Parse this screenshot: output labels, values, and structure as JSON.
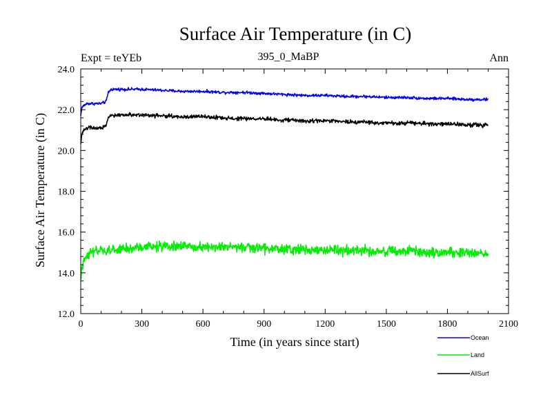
{
  "chart_data": {
    "type": "line",
    "title": "Surface Air Temperature (in C)",
    "subtitle": "395_0_MaBP",
    "left_label": "Expt = teYEb",
    "right_label": "Ann",
    "xlabel": "Time (in years since start)",
    "ylabel": "Surface Air Temperature (in C)",
    "xlim": [
      0,
      2100
    ],
    "ylim": [
      12.0,
      24.0
    ],
    "xticks": [
      0,
      300,
      600,
      900,
      1200,
      1500,
      1800,
      2100
    ],
    "xtick_labels": [
      "0",
      "300",
      "600",
      "900",
      "1200",
      "1500",
      "1800",
      "2100"
    ],
    "yticks": [
      12,
      14,
      16,
      18,
      20,
      22,
      24
    ],
    "ytick_labels": [
      "12.0",
      "14.0",
      "16.0",
      "18.0",
      "20.0",
      "22.0",
      "24.0"
    ],
    "series": [
      {
        "name": "Ocean",
        "color": "#0000ee",
        "x": [
          0,
          5,
          15,
          30,
          60,
          100,
          125,
          135,
          150,
          200,
          300,
          400,
          500,
          600,
          700,
          800,
          900,
          1000,
          1100,
          1200,
          1300,
          1400,
          1500,
          1600,
          1700,
          1800,
          1900,
          2000
        ],
        "values": [
          21.7,
          22.1,
          22.2,
          22.3,
          22.3,
          22.3,
          22.4,
          22.85,
          23.0,
          23.0,
          23.0,
          22.95,
          22.9,
          22.9,
          22.85,
          22.85,
          22.8,
          22.75,
          22.7,
          22.7,
          22.65,
          22.65,
          22.6,
          22.6,
          22.55,
          22.55,
          22.5,
          22.5
        ],
        "noise": 0.05
      },
      {
        "name": "Land",
        "color": "#00ee00",
        "x": [
          0,
          5,
          15,
          30,
          50,
          100,
          200,
          300,
          400,
          500,
          600,
          700,
          800,
          900,
          1000,
          1100,
          1200,
          1300,
          1400,
          1500,
          1600,
          1700,
          1800,
          1900,
          2000
        ],
        "values": [
          13.6,
          14.1,
          14.6,
          14.9,
          15.0,
          15.05,
          15.15,
          15.25,
          15.3,
          15.3,
          15.3,
          15.25,
          15.25,
          15.2,
          15.15,
          15.15,
          15.1,
          15.1,
          15.1,
          15.05,
          15.05,
          15.0,
          15.0,
          15.0,
          14.95
        ],
        "noise": 0.18
      },
      {
        "name": "AllSurf",
        "color": "#000000",
        "x": [
          0,
          5,
          15,
          30,
          60,
          100,
          125,
          135,
          150,
          200,
          300,
          400,
          500,
          600,
          700,
          800,
          900,
          1000,
          1100,
          1200,
          1300,
          1400,
          1500,
          1600,
          1700,
          1800,
          1900,
          2000
        ],
        "values": [
          20.3,
          20.8,
          21.0,
          21.1,
          21.1,
          21.1,
          21.2,
          21.6,
          21.7,
          21.75,
          21.75,
          21.7,
          21.65,
          21.65,
          21.6,
          21.55,
          21.55,
          21.5,
          21.45,
          21.45,
          21.4,
          21.4,
          21.35,
          21.35,
          21.3,
          21.3,
          21.25,
          21.25
        ],
        "noise": 0.07
      }
    ]
  },
  "legend": {
    "items": [
      {
        "label": "Ocean",
        "color": "#0000ee"
      },
      {
        "label": "Land",
        "color": "#00ee00"
      },
      {
        "label": "AllSurf",
        "color": "#000000"
      }
    ]
  }
}
